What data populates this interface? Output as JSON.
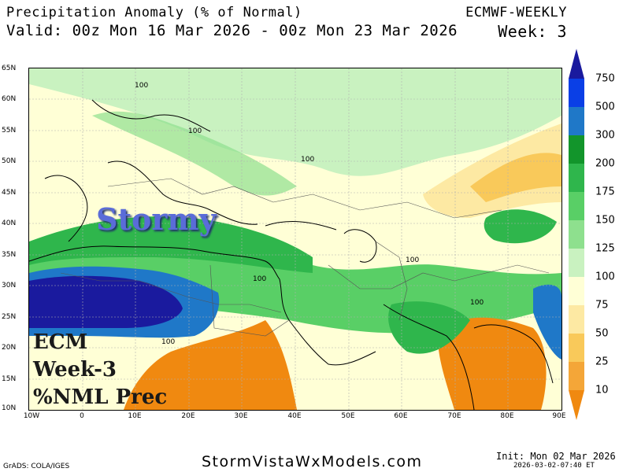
{
  "header": {
    "title": "Precipitation Anomaly (% of Normal)",
    "valid": "Valid: 00z Mon 16 Mar 2026 - 00z Mon 23 Mar 2026",
    "model": "ECMWF-WEEKLY",
    "week": "Week: 3"
  },
  "overlay": {
    "stormy": "Stormy",
    "line1": "ECM",
    "line2": "Week-3",
    "line3": "%NML Prec"
  },
  "axes": {
    "lat_labels": [
      "65N",
      "60N",
      "55N",
      "50N",
      "45N",
      "40N",
      "35N",
      "30N",
      "25N",
      "20N",
      "15N",
      "10N"
    ],
    "lon_labels": [
      "10W",
      "0",
      "10E",
      "20E",
      "30E",
      "40E",
      "50E",
      "60E",
      "70E",
      "80E",
      "90E"
    ],
    "lat_range": [
      10,
      65
    ],
    "lon_range": [
      -10,
      90
    ]
  },
  "contour_labels": [
    "100",
    "100",
    "100",
    "100",
    "100",
    "100",
    "100"
  ],
  "colorbar": {
    "labels": [
      "750",
      "500",
      "300",
      "200",
      "175",
      "150",
      "125",
      "100",
      "75",
      "50",
      "25",
      "10"
    ],
    "colors": [
      "#1a1a9e",
      "#0a3fe6",
      "#1f78c8",
      "#12952b",
      "#2fb64c",
      "#59cf66",
      "#8ee08e",
      "#c9f2c0",
      "#ffffd6",
      "#fde9a3",
      "#f9c95a",
      "#f4a638",
      "#f08910"
    ]
  },
  "footer": {
    "website": "StormVistaWxModels.com",
    "grads": "GrADS: COLA/IGES",
    "init": "Init: Mon 02 Mar 2026",
    "stamp": "2026-03-02-07:40 ET"
  }
}
